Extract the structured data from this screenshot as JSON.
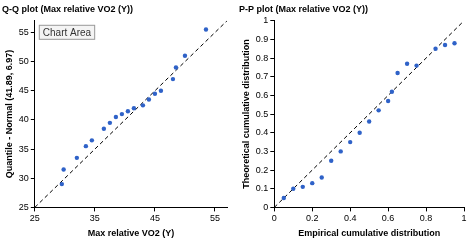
{
  "chart_data": [
    {
      "type": "scatter",
      "title": "Q-Q plot (Max relative VO2 (Y))",
      "x_label": "Max relative VO2 (Y)",
      "y_label": "Quantile - Normal (41.89, 6.97)",
      "annotation": "Chart Area",
      "xlim": [
        25,
        57
      ],
      "xticks": [
        25,
        35,
        45,
        55
      ],
      "ylim": [
        25,
        57
      ],
      "yticks": [
        25,
        30,
        35,
        40,
        45,
        50,
        55
      ],
      "grid": false,
      "series": [
        {
          "type": "scatter",
          "marker": "circle",
          "color": "#2f62c8",
          "x": [
            29.5,
            29.8,
            32,
            33.5,
            34.5,
            36.5,
            37.5,
            38.5,
            39.5,
            40.5,
            41.5,
            43,
            44,
            45,
            46,
            48,
            48.5,
            50,
            53.5
          ],
          "values": [
            29,
            31.5,
            33.5,
            35.5,
            36.5,
            38.5,
            39.5,
            40.5,
            41,
            41.5,
            42,
            42.5,
            43.5,
            44.5,
            45,
            47,
            49,
            51,
            55.5
          ]
        },
        {
          "type": "line",
          "line_style": "dashed",
          "color": "#000000",
          "x": [
            25,
            57
          ],
          "values": [
            25,
            57
          ]
        }
      ]
    },
    {
      "type": "scatter",
      "title": "P-P plot (Max relative VO2 (Y))",
      "x_label": "Empirical cumulative distribution",
      "y_label": "Theoretical cumulative distribution",
      "xlim": [
        0,
        1
      ],
      "xticks": [
        0,
        0.2,
        0.4,
        0.6,
        0.8,
        1
      ],
      "ylim": [
        0,
        1
      ],
      "yticks": [
        0,
        0.1,
        0.2,
        0.3,
        0.4,
        0.5,
        0.6,
        0.7,
        0.8,
        0.9,
        1
      ],
      "grid": false,
      "series": [
        {
          "type": "scatter",
          "marker": "circle",
          "color": "#2f62c8",
          "x": [
            0.05,
            0.1,
            0.15,
            0.2,
            0.25,
            0.3,
            0.35,
            0.4,
            0.45,
            0.5,
            0.55,
            0.6,
            0.62,
            0.65,
            0.7,
            0.75,
            0.85,
            0.9,
            0.95
          ],
          "values": [
            0.05,
            0.1,
            0.11,
            0.13,
            0.16,
            0.25,
            0.3,
            0.35,
            0.4,
            0.46,
            0.52,
            0.57,
            0.62,
            0.72,
            0.77,
            0.76,
            0.85,
            0.87,
            0.88
          ]
        },
        {
          "type": "line",
          "line_style": "dashed",
          "color": "#000000",
          "x": [
            0,
            1
          ],
          "values": [
            0,
            1
          ]
        }
      ]
    }
  ]
}
